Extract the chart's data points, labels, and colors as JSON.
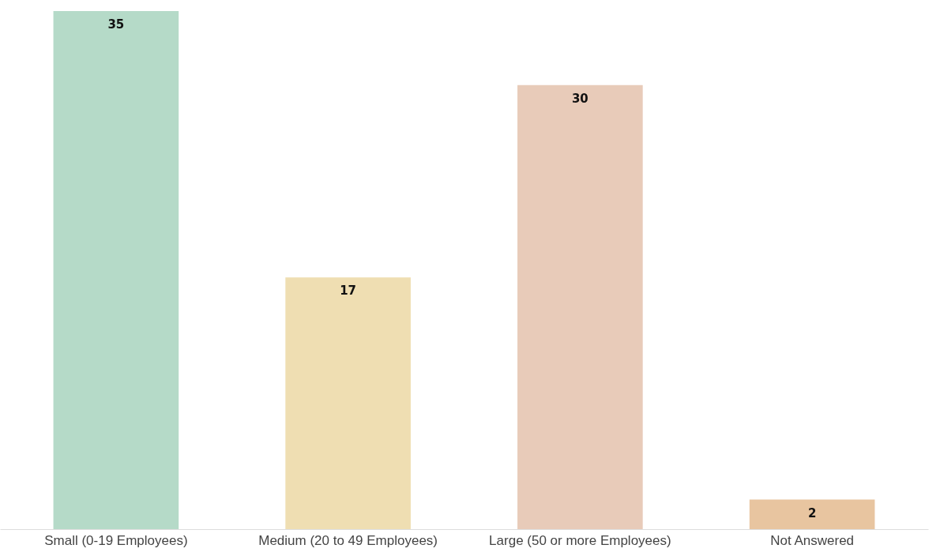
{
  "chart_data": {
    "type": "bar",
    "categories": [
      "Small (0-19 Employees)",
      "Medium (20 to 49 Employees)",
      "Large (50 or more Employees)",
      "Not Answered"
    ],
    "values": [
      35,
      17,
      30,
      2
    ],
    "colors": [
      "#b5dac8",
      "#efdeb2",
      "#e8cbb9",
      "#e8c5a0"
    ],
    "data_labels": true
  }
}
